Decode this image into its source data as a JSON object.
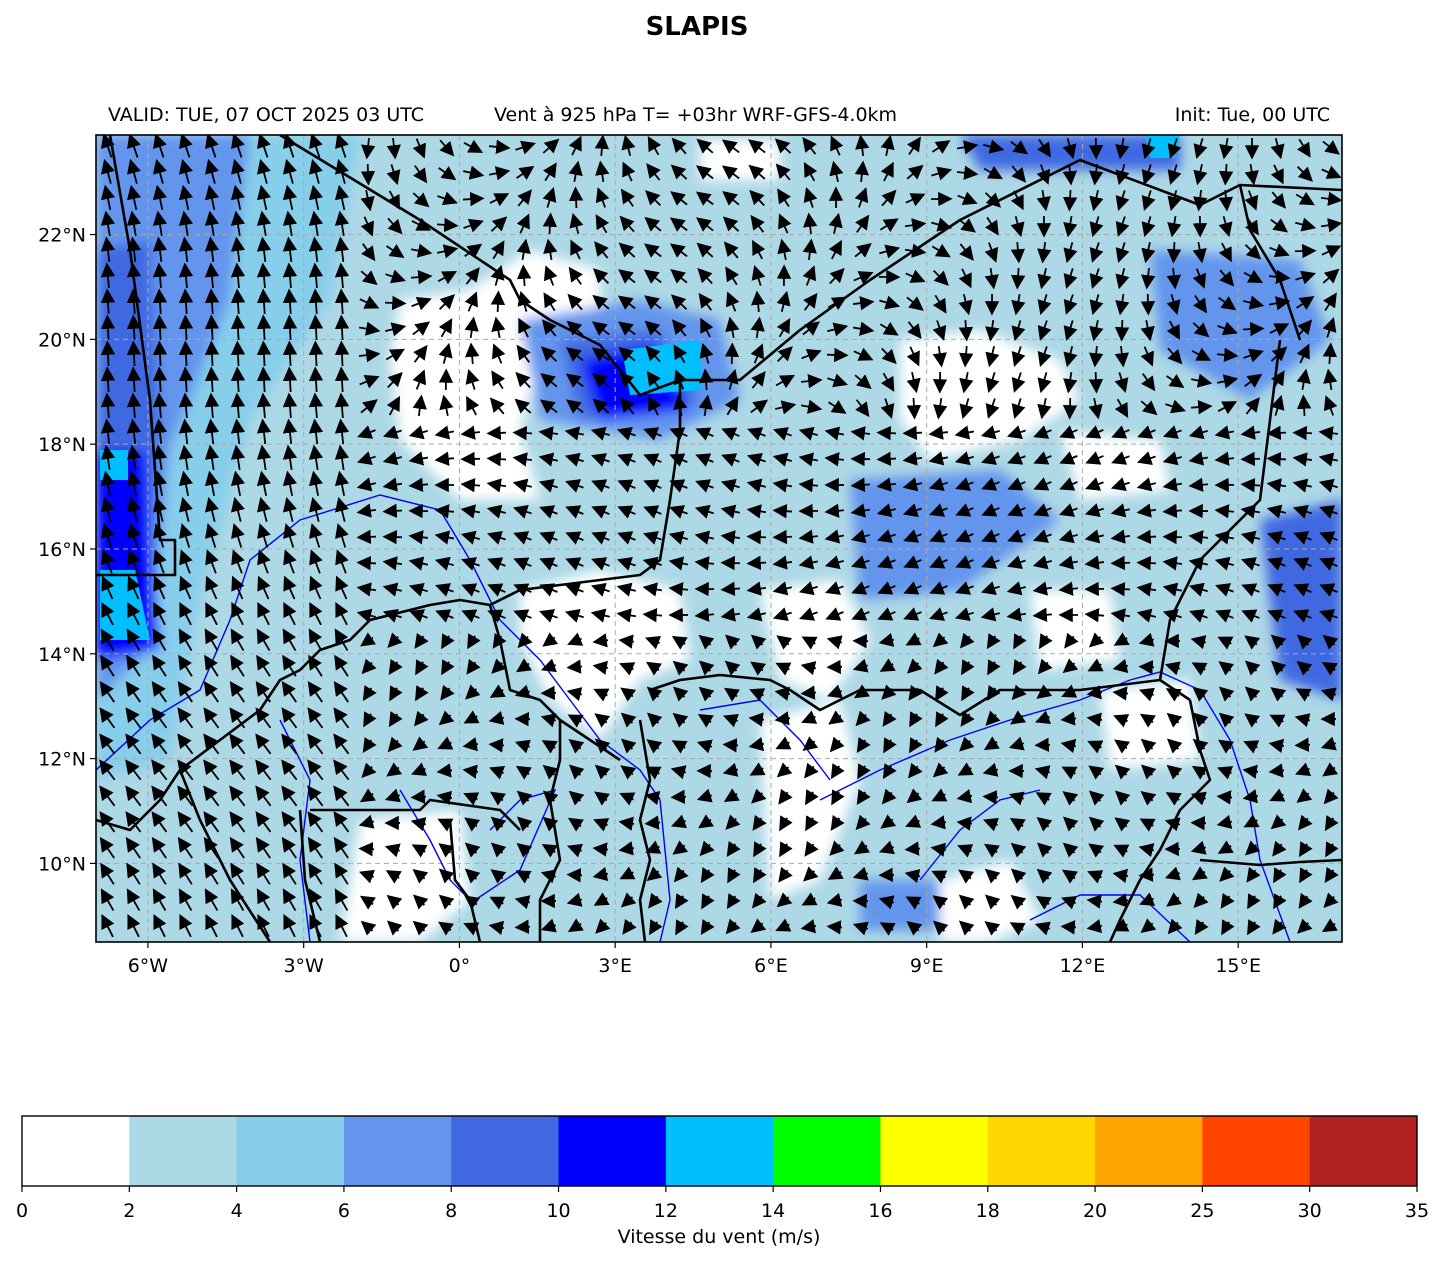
{
  "title": "SLAPIS",
  "subtitle_left": "VALID: TUE, 07 OCT 2025 03 UTC",
  "subtitle_center": "Vent à 925 hPa T= +03hr  WRF-GFS-4.0km",
  "subtitle_right": "Init: Tue, 00 UTC",
  "map": {
    "lon_range": [
      -7,
      17
    ],
    "lat_range": [
      8.5,
      23.9
    ],
    "lat_ticks": [
      "22°N",
      "20°N",
      "18°N",
      "16°N",
      "14°N",
      "12°N",
      "10°N"
    ],
    "lat_values": [
      22,
      20,
      18,
      16,
      14,
      12,
      10
    ],
    "lon_ticks": [
      "6°W",
      "3°W",
      "0°",
      "3°E",
      "6°E",
      "9°E",
      "12°E",
      "15°E"
    ],
    "lon_values": [
      -6,
      -3,
      0,
      3,
      6,
      9,
      12,
      15
    ],
    "grid": "dashed",
    "field": "wind speed (shaded) with wind vectors",
    "border_color": "#000000",
    "river_color": "#0000ff"
  },
  "colorbar": {
    "label": "Vitesse du vent (m/s)",
    "ticks": [
      "0",
      "2",
      "4",
      "6",
      "8",
      "10",
      "12",
      "14",
      "16",
      "18",
      "20",
      "25",
      "30",
      "35"
    ],
    "colors": [
      "#ffffff",
      "#add8e6",
      "#87ceeb",
      "#6495ed",
      "#4169e1",
      "#0000ff",
      "#00bfff",
      "#00ff00",
      "#ffff00",
      "#ffd700",
      "#ffa500",
      "#ff4500",
      "#b22222"
    ]
  }
}
